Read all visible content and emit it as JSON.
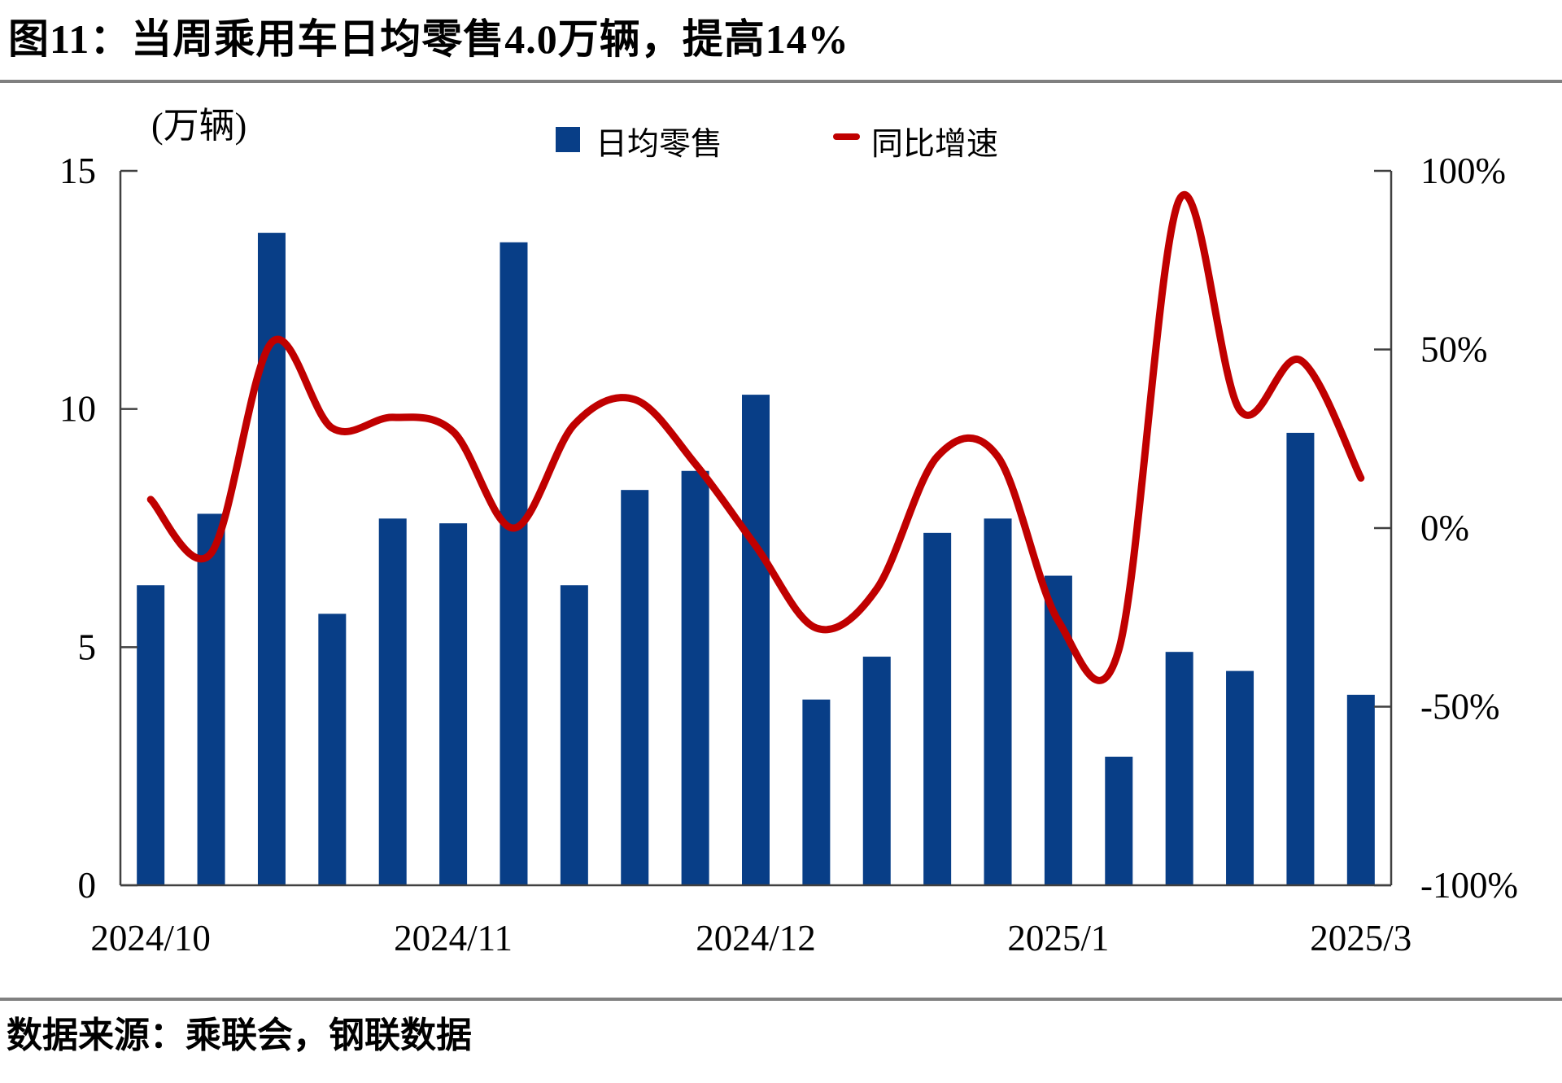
{
  "figure": {
    "title": "图11：当周乘用车日均零售4.0万辆，提高14%",
    "source": "数据来源：乘联会，钢联数据"
  },
  "legend": {
    "bar_label": "日均零售",
    "line_label": "同比增速"
  },
  "axes": {
    "left_unit": "(万辆)",
    "left_ticks": [
      {
        "label": "15",
        "value": 15
      },
      {
        "label": "10",
        "value": 10
      },
      {
        "label": "5",
        "value": 5
      },
      {
        "label": "0",
        "value": 0
      }
    ],
    "right_ticks": [
      {
        "label": "100%",
        "value": 100
      },
      {
        "label": "50%",
        "value": 50
      },
      {
        "label": "0%",
        "value": 0
      },
      {
        "label": "-50%",
        "value": -50
      },
      {
        "label": "-100%",
        "value": -100
      }
    ],
    "x_ticks": [
      {
        "label": "2024/10",
        "index": 0
      },
      {
        "label": "2024/11",
        "index": 5
      },
      {
        "label": "2024/12",
        "index": 10
      },
      {
        "label": "2025/1",
        "index": 15
      },
      {
        "label": "2025/3",
        "index": 20
      }
    ]
  },
  "colors": {
    "bar": "#083E87",
    "line": "#C00000",
    "axis": "#404040",
    "divider": "#808080",
    "text": "#000000"
  },
  "chart_data": {
    "type": "bar+line",
    "x": [
      1,
      2,
      3,
      4,
      5,
      6,
      7,
      8,
      9,
      10,
      11,
      12,
      13,
      14,
      15,
      16,
      17,
      18,
      19,
      20,
      21
    ],
    "x_meaning": "weekly observations, labeled only at month ticks",
    "series": [
      {
        "name": "日均零售",
        "type": "bar",
        "axis": "left",
        "unit": "万辆",
        "values": [
          6.3,
          7.8,
          13.7,
          5.7,
          7.7,
          7.6,
          13.5,
          6.3,
          8.3,
          8.7,
          10.3,
          3.9,
          4.8,
          7.4,
          7.7,
          6.5,
          2.7,
          4.9,
          4.5,
          9.5,
          4.0
        ]
      },
      {
        "name": "同比增速",
        "type": "line",
        "axis": "right",
        "unit": "%",
        "values": [
          8,
          -7,
          52,
          28,
          31,
          27,
          0,
          29,
          36,
          18,
          -5,
          -28,
          -17,
          20,
          20,
          -26,
          -34,
          92,
          33,
          47,
          14
        ]
      }
    ],
    "left_axis": {
      "label": "(万辆)",
      "range": [
        0,
        15
      ],
      "tick_step": 5
    },
    "right_axis": {
      "label": "%",
      "range": [
        -100,
        100
      ],
      "tick_step": 50
    },
    "x_tick_labels": {
      "2024/10": 1,
      "2024/11": 6,
      "2024/12": 11,
      "2025/1": 16,
      "2025/3": 21
    },
    "grid": false,
    "legend_position": "top-center",
    "title": "当周乘用车日均零售4.0万辆，提高14%"
  }
}
